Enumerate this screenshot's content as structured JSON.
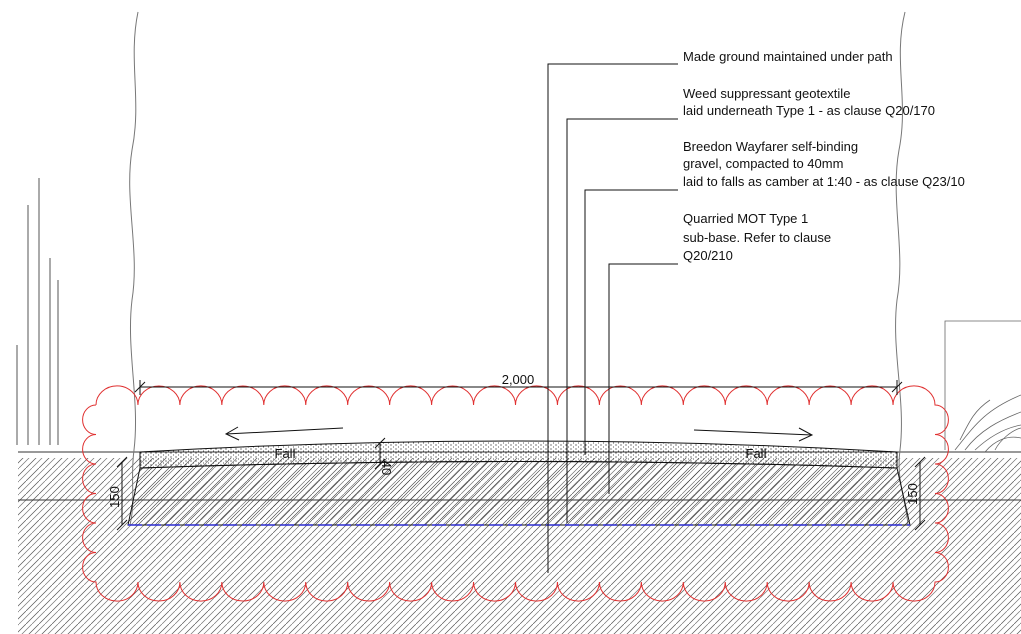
{
  "notes": [
    {
      "lines": [
        "Made ground maintained under path"
      ]
    },
    {
      "lines": [
        "Weed suppressant geotextile",
        "laid underneath Type 1 - as clause Q20/170"
      ]
    },
    {
      "lines": [
        "Breedon Wayfarer self-binding",
        "gravel, compacted to 40mm",
        "laid to falls as camber at 1:40 - as clause Q23/10"
      ]
    },
    {
      "lines": [
        "Quarried MOT Type 1",
        "sub-base. Refer to clause",
        "Q20/210"
      ]
    }
  ],
  "dimensions": {
    "width": "2,000",
    "left_depth": "150",
    "right_depth": "150",
    "surfacing_depth": "40"
  },
  "fall_labels": {
    "left": "Fall",
    "right": "Fall"
  },
  "colors": {
    "line": "#111111",
    "cloud": "#e03030",
    "geotextile": "#2a2ad0",
    "hatch": "#444444"
  }
}
